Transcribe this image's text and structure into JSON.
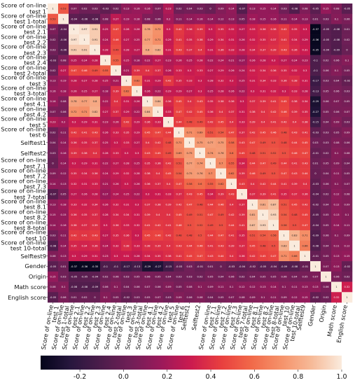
{
  "chart_data": {
    "type": "heatmap",
    "colormap": "rocket",
    "categories": [
      "Score of on-line test 1",
      "Score of on-line test 1-total",
      "Score of on-line test 2.1",
      "Score of on-line test 2.2",
      "Score of on-line test 2.3",
      "Score of on-line test 2.4",
      "Score of on-line test 2-total",
      "Score of on-line test 3",
      "Score of on-line test 3-total",
      "Score of on-line test 4.1",
      "Score of on-line test 4.2",
      "Score of on-line test 5",
      "Score of on-line test 6",
      "Selftest1",
      "Selftest2",
      "Score of on-line test 7.1",
      "Score of on-line test 7.2",
      "Score of on-line test 7.3",
      "Score of on-line test 7-total",
      "Score of on-line test 8.1",
      "Score of on-line test 8.2",
      "Score of on-line test 8-total",
      "Score of on-line test 10",
      "Score of on-line test 10-total",
      "Selftest9",
      "Gender",
      "Origin",
      "Math score",
      "English score"
    ],
    "values": [
      [
        1,
        0.53,
        0.07,
        0.02,
        0.03,
        -0.03,
        0.02,
        0.13,
        0.16,
        0.16,
        0.07,
        0.23,
        0.02,
        0.04,
        0.03,
        0,
        0.09,
        0.14,
        -0.07,
        0.13,
        0.15,
        0.14,
        0.03,
        -0.08,
        0.08,
        -0.05,
        0.15,
        0.08,
        -0.05
      ],
      [
        0.53,
        1,
        -0.04,
        -0.06,
        -0.06,
        0.08,
        0.27,
        0.19,
        0.18,
        0.08,
        0.06,
        0.2,
        0.11,
        0.14,
        0.16,
        0.14,
        0.12,
        0.13,
        0.05,
        0.18,
        0.15,
        0.16,
        0.11,
        0.14,
        0.13,
        0.01,
        0.03,
        0.1,
        0.06
      ],
      [
        0.07,
        -0.04,
        1,
        0.97,
        0.91,
        0.25,
        0.47,
        0.28,
        0.26,
        0.78,
        0.72,
        0.3,
        0.42,
        0.36,
        0.39,
        0.3,
        0.35,
        0.32,
        0.27,
        0.33,
        0.36,
        0.38,
        0.42,
        0.35,
        0.3,
        -0.37,
        -0.05,
        -0.08,
        0.01
      ],
      [
        0.02,
        -0.06,
        0.97,
        1,
        0.91,
        0.24,
        0.46,
        0.27,
        0.25,
        0.77,
        0.71,
        0.29,
        0.41,
        0.35,
        0.38,
        0.29,
        0.34,
        0.31,
        0.26,
        0.32,
        0.35,
        0.37,
        0.41,
        0.34,
        0.29,
        -0.36,
        -0.05,
        -0.08,
        0.02
      ],
      [
        0.03,
        -0.06,
        0.91,
        0.91,
        1,
        0.28,
        0.49,
        0.28,
        0.27,
        0.8,
        0.82,
        0.31,
        0.43,
        0.37,
        0.4,
        0.31,
        0.36,
        0.33,
        0.28,
        0.34,
        0.37,
        0.39,
        0.43,
        0.36,
        0.31,
        -0.35,
        -0.04,
        -0.09,
        0
      ],
      [
        -0.03,
        0.08,
        0.25,
        0.24,
        0.28,
        1,
        0.55,
        0.25,
        0.18,
        0.22,
        0.27,
        0.23,
        0.26,
        0.25,
        0.28,
        0.22,
        0.24,
        0.21,
        0.17,
        0.26,
        0.28,
        0.3,
        0.27,
        0.24,
        0.23,
        -0.1,
        0.02,
        0.06,
        0.1
      ],
      [
        0.02,
        0.27,
        0.47,
        0.46,
        0.49,
        0.55,
        1,
        0.21,
        0.39,
        0.4,
        0.37,
        0.26,
        0.33,
        0.3,
        0.33,
        0.27,
        0.29,
        0.26,
        0.24,
        0.32,
        0.34,
        0.36,
        0.35,
        0.32,
        0.3,
        -0.1,
        0.06,
        0.1,
        0.05
      ],
      [
        0.13,
        0.19,
        0.28,
        0.27,
        0.28,
        0.25,
        0.21,
        1,
        0.62,
        0.31,
        0.29,
        0.42,
        0.35,
        0.33,
        0.3,
        0.28,
        0.32,
        0.3,
        0.25,
        0.31,
        0.34,
        0.33,
        0.36,
        0.38,
        0.31,
        -0.17,
        0.03,
        0.04,
        -0.02
      ],
      [
        0.16,
        0.18,
        0.26,
        0.25,
        0.27,
        0.18,
        0.39,
        0.62,
        1,
        0.26,
        0.22,
        0.29,
        0.29,
        0.27,
        0.3,
        0.25,
        0.28,
        0.26,
        0.22,
        0.3,
        0.31,
        0.32,
        0.3,
        0.33,
        0.28,
        -0.13,
        0.05,
        0.06,
        0.03
      ],
      [
        0.16,
        0.08,
        0.78,
        0.77,
        0.8,
        0.22,
        0.4,
        0.31,
        0.26,
        1,
        0.84,
        0.36,
        0.45,
        0.4,
        0.43,
        0.35,
        0.38,
        0.36,
        0.3,
        0.37,
        0.39,
        0.41,
        0.45,
        0.38,
        0.34,
        -0.29,
        0.06,
        0.07,
        0.05
      ],
      [
        0.07,
        0.06,
        0.72,
        0.71,
        0.82,
        0.27,
        0.37,
        0.29,
        0.22,
        0.84,
        1,
        0.33,
        0.47,
        0.42,
        0.45,
        0.36,
        0.4,
        0.37,
        0.31,
        0.38,
        0.4,
        0.42,
        0.46,
        0.39,
        0.35,
        -0.27,
        0.05,
        0.06,
        0.07
      ],
      [
        0.23,
        0.2,
        0.3,
        0.29,
        0.31,
        0.23,
        0.26,
        0.42,
        0.29,
        0.36,
        0.33,
        1,
        0.44,
        0.48,
        0.49,
        0.42,
        0.45,
        0.4,
        0.33,
        0.39,
        0.4,
        0.41,
        0.42,
        0.4,
        0.38,
        -0.15,
        0.04,
        0.09,
        0.03
      ],
      [
        0.02,
        0.11,
        0.42,
        0.41,
        0.43,
        0.26,
        0.33,
        0.35,
        0.29,
        0.45,
        0.47,
        0.44,
        1,
        0.71,
        0.69,
        0.51,
        0.54,
        0.47,
        0.37,
        0.42,
        0.45,
        0.46,
        0.48,
        0.43,
        0.41,
        -0.03,
        0.03,
        0.05,
        0.09
      ],
      [
        0.04,
        0.14,
        0.36,
        0.35,
        0.37,
        0.25,
        0.3,
        0.33,
        0.27,
        0.4,
        0.42,
        0.48,
        0.71,
        1,
        0.75,
        0.77,
        0.75,
        0.58,
        0.43,
        0.47,
        0.49,
        0.5,
        0.48,
        0.44,
        0.45,
        0.03,
        0.03,
        0.08,
        0.06
      ],
      [
        0.03,
        0.16,
        0.39,
        0.38,
        0.4,
        0.28,
        0.33,
        0.3,
        0.3,
        0.43,
        0.45,
        0.49,
        0.69,
        0.75,
        1,
        0.74,
        0.76,
        0.6,
        0.45,
        0.48,
        0.51,
        0.52,
        0.5,
        0.46,
        0.47,
        -0.01,
        0.02,
        0.1,
        0.08
      ],
      [
        0,
        0.14,
        0.3,
        0.29,
        0.31,
        0.22,
        0.27,
        0.28,
        0.25,
        0.35,
        0.36,
        0.42,
        0.51,
        0.77,
        0.74,
        1,
        0.7,
        0.55,
        0.34,
        0.44,
        0.47,
        0.49,
        0.44,
        0.41,
        0.43,
        0.01,
        0.05,
        0.09,
        0.04
      ],
      [
        0.09,
        0.12,
        0.35,
        0.34,
        0.36,
        0.24,
        0.29,
        0.32,
        0.28,
        0.38,
        0.4,
        0.45,
        0.54,
        0.75,
        0.76,
        0.7,
        1,
        0.62,
        0.39,
        0.46,
        0.49,
        0.5,
        0.47,
        0.43,
        0.44,
        0,
        0.04,
        0.11,
        0.05
      ],
      [
        0.14,
        0.13,
        0.32,
        0.31,
        0.33,
        0.21,
        0.26,
        0.3,
        0.26,
        0.36,
        0.37,
        0.4,
        0.47,
        0.58,
        0.6,
        0.55,
        0.62,
        1,
        0.43,
        0.4,
        0.42,
        0.44,
        0.41,
        0.39,
        0.4,
        -0.03,
        0.06,
        0.1,
        0.07
      ],
      [
        -0.07,
        0.05,
        0.27,
        0.26,
        0.28,
        0.17,
        0.24,
        0.25,
        0.22,
        0.3,
        0.31,
        0.33,
        0.37,
        0.43,
        0.45,
        0.34,
        0.39,
        0.43,
        1,
        0.37,
        0.39,
        0.41,
        0.35,
        0.37,
        0.36,
        -0.04,
        0.02,
        0.12,
        0.08
      ],
      [
        0.13,
        0.18,
        0.33,
        0.32,
        0.34,
        0.26,
        0.32,
        0.31,
        0.3,
        0.37,
        0.38,
        0.39,
        0.42,
        0.47,
        0.48,
        0.44,
        0.46,
        0.4,
        0.37,
        1,
        0.81,
        0.87,
        0.51,
        0.45,
        0.42,
        -0.02,
        0.04,
        0.12,
        0.09
      ],
      [
        0.15,
        0.15,
        0.36,
        0.35,
        0.37,
        0.28,
        0.34,
        0.34,
        0.31,
        0.39,
        0.4,
        0.4,
        0.45,
        0.49,
        0.51,
        0.47,
        0.49,
        0.42,
        0.39,
        0.81,
        1,
        0.93,
        0.54,
        0.48,
        0.45,
        -0.05,
        0.05,
        0.13,
        0.1
      ],
      [
        0.14,
        0.16,
        0.38,
        0.37,
        0.39,
        0.3,
        0.36,
        0.33,
        0.32,
        0.41,
        0.42,
        0.41,
        0.46,
        0.5,
        0.52,
        0.49,
        0.5,
        0.44,
        0.41,
        0.87,
        0.93,
        1,
        0.56,
        0.5,
        0.47,
        -0.04,
        0.05,
        0.14,
        0.11
      ],
      [
        0.03,
        0.11,
        0.42,
        0.41,
        0.43,
        0.27,
        0.35,
        0.36,
        0.3,
        0.45,
        0.46,
        0.42,
        0.48,
        0.48,
        0.5,
        0.44,
        0.47,
        0.41,
        0.35,
        0.51,
        0.54,
        0.56,
        1,
        0.83,
        0.71,
        -0.09,
        0.06,
        0.1,
        0.09
      ],
      [
        -0.08,
        0.14,
        0.35,
        0.34,
        0.36,
        0.24,
        0.32,
        0.38,
        0.33,
        0.38,
        0.39,
        0.4,
        0.43,
        0.44,
        0.46,
        0.41,
        0.43,
        0.39,
        0.37,
        0.45,
        0.48,
        0.5,
        0.83,
        1,
        0.66,
        -0.08,
        0.04,
        0.11,
        0.12
      ],
      [
        0.08,
        0.13,
        0.3,
        0.29,
        0.31,
        0.23,
        0.3,
        0.31,
        0.28,
        0.34,
        0.35,
        0.38,
        0.41,
        0.45,
        0.47,
        0.43,
        0.44,
        0.4,
        0.36,
        0.42,
        0.45,
        0.47,
        0.71,
        0.66,
        1,
        -0.01,
        0.05,
        0.13,
        0.15
      ],
      [
        -0.05,
        0.01,
        -0.37,
        -0.36,
        -0.35,
        -0.1,
        -0.1,
        -0.17,
        -0.13,
        -0.29,
        -0.27,
        -0.15,
        -0.03,
        0.03,
        -0.01,
        0.01,
        0,
        -0.03,
        -0.04,
        -0.02,
        -0.05,
        -0.04,
        -0.09,
        -0.08,
        -0.01,
        1,
        0.07,
        0.13,
        -0.02
      ],
      [
        0.15,
        0.03,
        -0.05,
        -0.05,
        -0.04,
        0.02,
        0.06,
        0.03,
        0.05,
        0.06,
        0.05,
        0.04,
        0.03,
        0.03,
        0.02,
        0.05,
        0.04,
        0.06,
        0.02,
        0.04,
        0.05,
        0.05,
        0.06,
        0.04,
        0.05,
        0.07,
        1,
        0.06,
        0.02
      ],
      [
        0.08,
        0.1,
        -0.08,
        -0.08,
        -0.09,
        0.06,
        0.1,
        0.04,
        0.06,
        0.07,
        0.06,
        0.09,
        0.05,
        0.08,
        0.1,
        0.09,
        0.11,
        0.1,
        0.12,
        0.12,
        0.13,
        0.14,
        0.1,
        0.11,
        0.13,
        0.13,
        0.06,
        1,
        0.32
      ],
      [
        -0.05,
        0.06,
        0.01,
        0.02,
        0,
        0.1,
        0.05,
        -0.02,
        0.03,
        0.05,
        0.07,
        0.03,
        0.09,
        0.06,
        0.08,
        0.04,
        0.05,
        0.07,
        0.08,
        0.09,
        0.1,
        0.11,
        0.09,
        0.12,
        0.15,
        -0.02,
        0.02,
        0.32,
        1
      ]
    ],
    "clim": [
      -0.38,
      1.0
    ],
    "cticks": [
      -0.2,
      {
        "value": 0,
        "label": "0.0"
      },
      0.2,
      0.4,
      0.6,
      0.8,
      {
        "value": 1,
        "label": "1.0"
      }
    ]
  }
}
